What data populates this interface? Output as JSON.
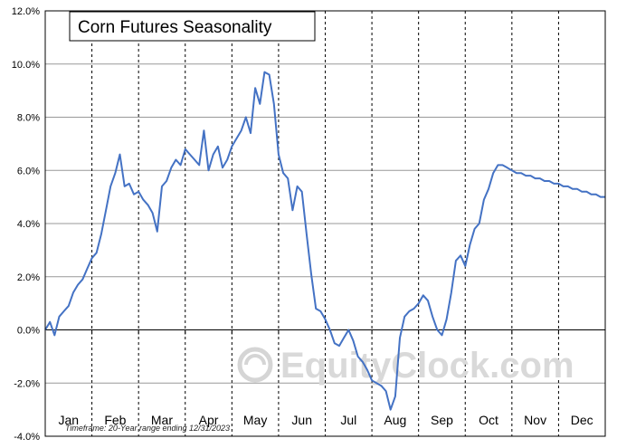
{
  "chart_data": {
    "type": "line",
    "title": "Corn Futures Seasonality",
    "ylim": [
      -4,
      12
    ],
    "yticks": [
      -4,
      -2,
      0,
      2,
      4,
      6,
      8,
      10,
      12
    ],
    "ytick_labels": [
      "-4.0%",
      "-2.0%",
      "0.0%",
      "2.0%",
      "4.0%",
      "6.0%",
      "8.0%",
      "10.0%",
      "12.0%"
    ],
    "month_labels": [
      "Jan",
      "Feb",
      "Mar",
      "Apr",
      "May",
      "Jun",
      "Jul",
      "Aug",
      "Sep",
      "Oct",
      "Nov",
      "Dec"
    ],
    "grid": {
      "horizontal": true,
      "vertical_month_dividers": true,
      "vertical_style": "dashed"
    },
    "line_color": "#4472C4",
    "footnote": "Timeframe: 20-Year range ending 12/31/2023",
    "watermark": "EquityClock.com",
    "series": [
      {
        "x": [
          0.0,
          0.1,
          0.2,
          0.3,
          0.4,
          0.5,
          0.6,
          0.7,
          0.8,
          0.9,
          1.0,
          1.1,
          1.2,
          1.3,
          1.4,
          1.5,
          1.6,
          1.7,
          1.8,
          1.9,
          2.0,
          2.1,
          2.2,
          2.3,
          2.4,
          2.5,
          2.6,
          2.7,
          2.8,
          2.9,
          3.0,
          3.1,
          3.2,
          3.3,
          3.4,
          3.5,
          3.6,
          3.7,
          3.8,
          3.9,
          4.0,
          4.1,
          4.2,
          4.3,
          4.4,
          4.5,
          4.6,
          4.7,
          4.8,
          4.9,
          5.0,
          5.1,
          5.2,
          5.3,
          5.4,
          5.5,
          5.6,
          5.7,
          5.8,
          5.9,
          6.0,
          6.1,
          6.2,
          6.3,
          6.4,
          6.5,
          6.6,
          6.7,
          6.8,
          6.9,
          7.0,
          7.1,
          7.2,
          7.3,
          7.4,
          7.5,
          7.6,
          7.7,
          7.8,
          7.9,
          8.0,
          8.1,
          8.2,
          8.3,
          8.4,
          8.5,
          8.6,
          8.7,
          8.8,
          8.9,
          9.0,
          9.1,
          9.2,
          9.3,
          9.4,
          9.5,
          9.6,
          9.7,
          9.8,
          9.9,
          10.0,
          10.1,
          10.2,
          10.3,
          10.4,
          10.5,
          10.6,
          10.7,
          10.8,
          10.9,
          11.0,
          11.1,
          11.2,
          11.3,
          11.4,
          11.5,
          11.6,
          11.7,
          11.8,
          11.9,
          12.0
        ],
        "y": [
          0.0,
          0.3,
          -0.2,
          0.5,
          0.7,
          0.9,
          1.4,
          1.7,
          1.9,
          2.3,
          2.7,
          2.9,
          3.6,
          4.5,
          5.4,
          5.9,
          6.6,
          5.4,
          5.5,
          5.1,
          5.2,
          4.9,
          4.7,
          4.4,
          3.7,
          5.4,
          5.6,
          6.1,
          6.4,
          6.2,
          6.8,
          6.6,
          6.4,
          6.2,
          7.5,
          6.0,
          6.6,
          6.9,
          6.1,
          6.4,
          6.9,
          7.2,
          7.5,
          8.0,
          7.4,
          9.1,
          8.5,
          9.7,
          9.6,
          8.5,
          6.6,
          5.9,
          5.7,
          4.5,
          5.4,
          5.2,
          3.6,
          2.1,
          0.8,
          0.7,
          0.4,
          0.0,
          -0.5,
          -0.6,
          -0.3,
          0.0,
          -0.4,
          -1.0,
          -1.2,
          -1.5,
          -1.9,
          -2.0,
          -2.1,
          -2.3,
          -3.0,
          -2.5,
          -0.3,
          0.5,
          0.7,
          0.8,
          1.0,
          1.3,
          1.1,
          0.5,
          0.0,
          -0.2,
          0.4,
          1.4,
          2.6,
          2.8,
          2.4,
          3.2,
          3.8,
          4.0,
          4.9,
          5.3,
          5.9,
          6.2,
          6.2,
          6.1,
          6.0,
          5.9,
          5.9,
          5.8,
          5.8,
          5.7,
          5.7,
          5.6,
          5.6,
          5.5,
          5.5,
          5.4,
          5.4,
          5.3,
          5.3,
          5.2,
          5.2,
          5.1,
          5.1,
          5.0,
          5.0
        ]
      }
    ]
  }
}
